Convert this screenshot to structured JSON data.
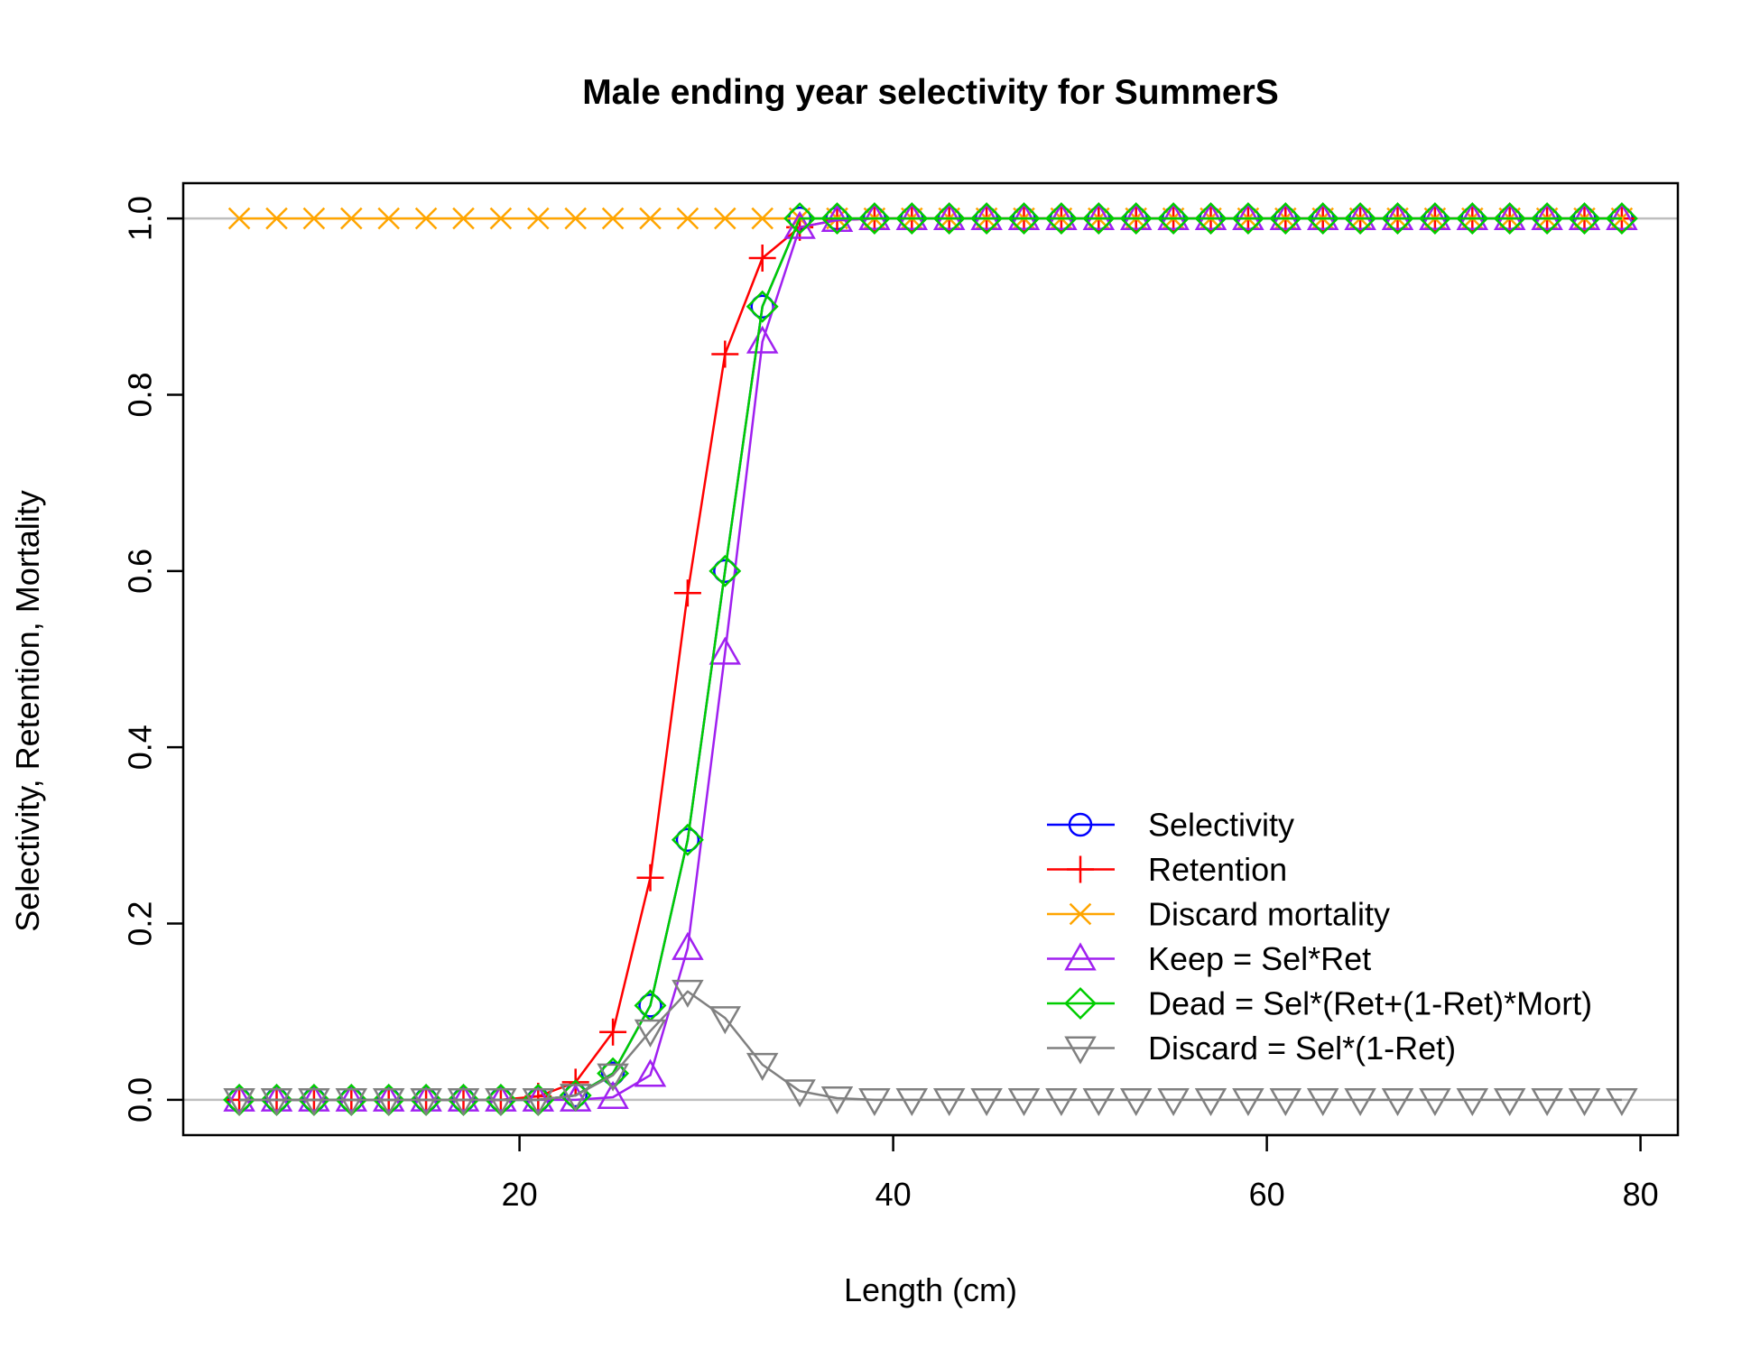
{
  "chart_data": {
    "type": "line",
    "title": "Male ending year selectivity for SummerS",
    "xlabel": "Length (cm)",
    "ylabel": "Selectivity, Retention, Mortality",
    "xlim": [
      2,
      82
    ],
    "ylim": [
      -0.04,
      1.04
    ],
    "xticks": [
      20,
      40,
      60,
      80
    ],
    "yticks": [
      0.0,
      0.2,
      0.4,
      0.6,
      0.8,
      1.0
    ],
    "xtick_labels": [
      "20",
      "40",
      "60",
      "80"
    ],
    "ytick_labels": [
      "0.0",
      "0.2",
      "0.4",
      "0.6",
      "0.8",
      "1.0"
    ],
    "reference_lines": [
      0,
      1
    ],
    "reference_line_color": "#bebebe",
    "legend_position": "bottom-right",
    "x": [
      5,
      7,
      9,
      11,
      13,
      15,
      17,
      19,
      21,
      23,
      25,
      27,
      29,
      31,
      33,
      35,
      37,
      39,
      41,
      43,
      45,
      47,
      49,
      51,
      53,
      55,
      57,
      59,
      61,
      63,
      65,
      67,
      69,
      71,
      73,
      75,
      77,
      79
    ],
    "series": [
      {
        "name": "Selectivity",
        "color": "#0000ff",
        "marker": "circle",
        "values": [
          0,
          0,
          0,
          0,
          0,
          0,
          0,
          0,
          0,
          0.005,
          0.03,
          0.107,
          0.295,
          0.6,
          0.9,
          1,
          1,
          1,
          1,
          1,
          1,
          1,
          1,
          1,
          1,
          1,
          1,
          1,
          1,
          1,
          1,
          1,
          1,
          1,
          1,
          1,
          1,
          1
        ]
      },
      {
        "name": "Retention",
        "color": "#ff0000",
        "marker": "plus",
        "values": [
          0,
          0,
          0,
          0,
          0,
          0,
          0,
          0,
          0.004,
          0.02,
          0.077,
          0.252,
          0.575,
          0.846,
          0.955,
          0.99,
          0.998,
          1,
          1,
          1,
          1,
          1,
          1,
          1,
          1,
          1,
          1,
          1,
          1,
          1,
          1,
          1,
          1,
          1,
          1,
          1,
          1,
          1
        ]
      },
      {
        "name": "Discard mortality",
        "color": "#ffa500",
        "marker": "cross",
        "values": [
          1,
          1,
          1,
          1,
          1,
          1,
          1,
          1,
          1,
          1,
          1,
          1,
          1,
          1,
          1,
          1,
          1,
          1,
          1,
          1,
          1,
          1,
          1,
          1,
          1,
          1,
          1,
          1,
          1,
          1,
          1,
          1,
          1,
          1,
          1,
          1,
          1,
          1
        ]
      },
      {
        "name": "Keep = Sel*Ret",
        "color": "#a020f0",
        "marker": "triangle-up",
        "values": [
          0,
          0,
          0,
          0,
          0,
          0,
          0,
          0,
          0,
          0,
          0.003,
          0.028,
          0.172,
          0.507,
          0.86,
          0.99,
          0.998,
          1,
          1,
          1,
          1,
          1,
          1,
          1,
          1,
          1,
          1,
          1,
          1,
          1,
          1,
          1,
          1,
          1,
          1,
          1,
          1,
          1
        ]
      },
      {
        "name": "Dead = Sel*(Ret+(1-Ret)*Mort)",
        "color": "#00cd00",
        "marker": "diamond",
        "values": [
          0,
          0,
          0,
          0,
          0,
          0,
          0,
          0,
          0,
          0.005,
          0.03,
          0.107,
          0.295,
          0.6,
          0.9,
          1,
          1,
          1,
          1,
          1,
          1,
          1,
          1,
          1,
          1,
          1,
          1,
          1,
          1,
          1,
          1,
          1,
          1,
          1,
          1,
          1,
          1,
          1
        ]
      },
      {
        "name": "Discard = Sel*(1-Ret)",
        "color": "#808080",
        "marker": "triangle-down",
        "values": [
          0,
          0,
          0,
          0,
          0,
          0,
          0,
          0,
          0,
          0.005,
          0.028,
          0.078,
          0.123,
          0.093,
          0.04,
          0.01,
          0.002,
          0,
          0,
          0,
          0,
          0,
          0,
          0,
          0,
          0,
          0,
          0,
          0,
          0,
          0,
          0,
          0,
          0,
          0,
          0,
          0,
          0
        ]
      }
    ]
  }
}
